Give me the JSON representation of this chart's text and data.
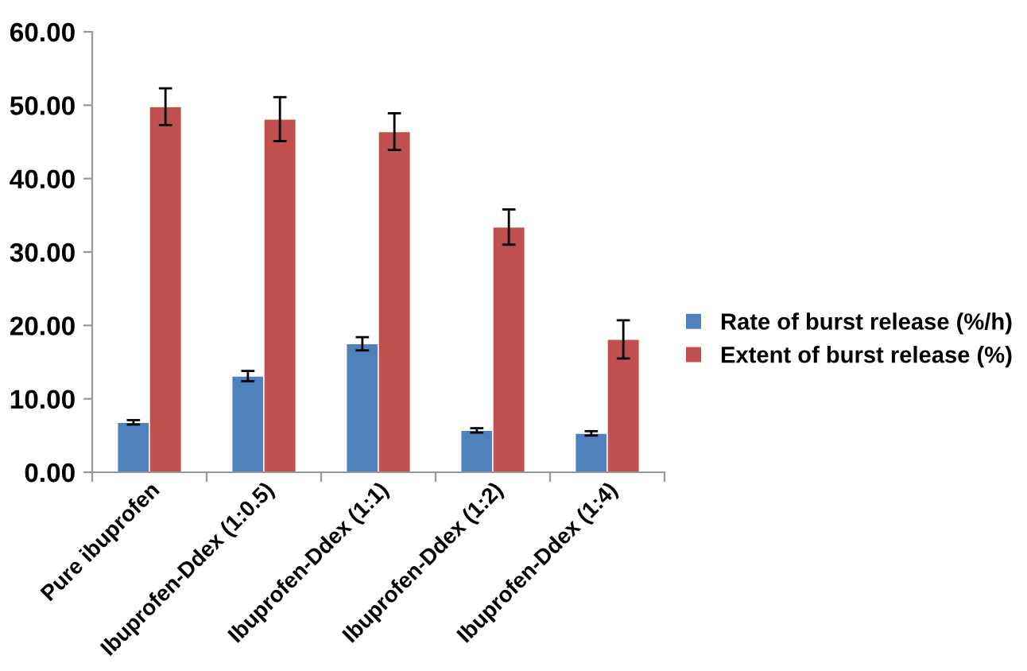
{
  "chart_data": {
    "type": "bar",
    "categories": [
      "Pure ibuprofen",
      "Ibuprofen-Ddex (1:0.5)",
      "Ibuprofen-Ddex (1:1)",
      "Ibuprofen-Ddex (1:2)",
      "Ibuprofen-Ddex (1:4)"
    ],
    "series": [
      {
        "name": "Rate of burst release (%/h)",
        "color": "#4f81bd",
        "values": [
          6.8,
          13.1,
          17.5,
          5.7,
          5.3
        ],
        "errors": [
          0.3,
          0.7,
          0.9,
          0.3,
          0.3
        ]
      },
      {
        "name": "Extent of burst release (%)",
        "color": "#c0504d",
        "values": [
          49.8,
          48.1,
          46.4,
          33.4,
          18.1
        ],
        "errors": [
          2.5,
          3.0,
          2.5,
          2.4,
          2.6
        ]
      }
    ],
    "ylim": [
      0,
      60
    ],
    "yticks": [
      {
        "value": 0,
        "label": "0.00"
      },
      {
        "value": 10,
        "label": "10.00"
      },
      {
        "value": 20,
        "label": "20.00"
      },
      {
        "value": 30,
        "label": "30.00"
      },
      {
        "value": 40,
        "label": "40.00"
      },
      {
        "value": 50,
        "label": "50.00"
      },
      {
        "value": 60,
        "label": "60.00"
      }
    ],
    "legend": "right",
    "grid": false
  }
}
